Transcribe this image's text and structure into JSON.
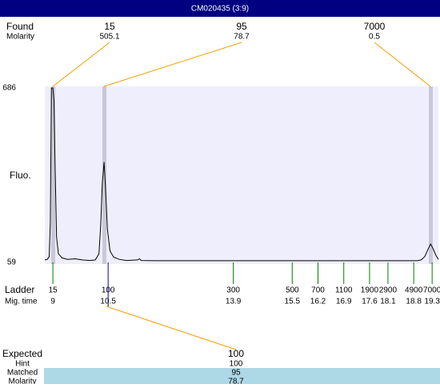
{
  "header": {
    "title": "CM020435 (3:9)"
  },
  "found": {
    "label": "Found",
    "sublabel": "Molarity",
    "sizes": [
      15,
      95,
      7000
    ],
    "molarities": [
      505.1,
      78.7,
      0.5
    ]
  },
  "chart_data": {
    "type": "line",
    "ylabel": "Fluo.",
    "xlim": [
      8.78,
      19.47
    ],
    "ylim": [
      59,
      686
    ],
    "yticks": [
      59,
      686
    ],
    "color": "#000000",
    "background": "#eeeefc",
    "x": [
      8.78,
      8.85,
      8.9,
      8.93,
      8.96,
      9.0,
      9.03,
      9.06,
      9.1,
      9.15,
      9.25,
      9.4,
      9.6,
      9.8,
      10.0,
      10.15,
      10.25,
      10.3,
      10.34,
      10.39,
      10.43,
      10.48,
      10.55,
      10.65,
      10.8,
      11.0,
      11.3,
      11.35,
      11.4,
      11.8,
      13.0,
      15.0,
      17.0,
      18.9,
      19.0,
      19.1,
      19.2,
      19.26,
      19.32,
      19.4,
      19.47
    ],
    "values": [
      68,
      70,
      80,
      200,
      686,
      686,
      640,
      400,
      150,
      90,
      75,
      70,
      72,
      68,
      66,
      68,
      90,
      200,
      340,
      420,
      330,
      180,
      100,
      78,
      70,
      66,
      68,
      72,
      66,
      65,
      65,
      65,
      65,
      65,
      68,
      80,
      110,
      125,
      110,
      85,
      70
    ],
    "ladder": {
      "label": "Ladder",
      "sublabel": "Mig. time",
      "color": "#008000",
      "matched_color": "#0000cc",
      "sizes": [
        15,
        100,
        300,
        500,
        700,
        1100,
        1900,
        2900,
        4900,
        7000
      ],
      "times": [
        9,
        10.5,
        13.9,
        15.5,
        16.2,
        16.9,
        17.6,
        18.1,
        18.8,
        19.3
      ]
    }
  },
  "expected": {
    "label": "Expected",
    "value": 100,
    "rows": [
      {
        "label": "Hint",
        "value": 100
      },
      {
        "label": "Matched",
        "value": 95
      },
      {
        "label": "Molarity",
        "value": 78.7
      }
    ]
  }
}
